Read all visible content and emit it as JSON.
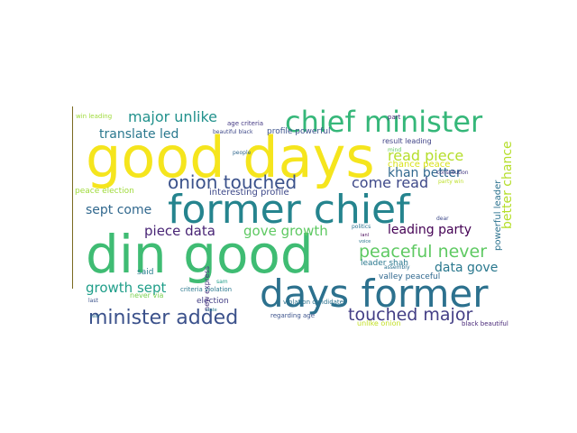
{
  "wordcloud": {
    "background": "#ffffff",
    "words": [
      {
        "text": "good days",
        "color": "#f5e51d"
      },
      {
        "text": "din good",
        "color": "#3fbc73"
      },
      {
        "text": "former chief",
        "color": "#25848e"
      },
      {
        "text": "days former",
        "color": "#2c718e"
      },
      {
        "text": "chief minister",
        "color": "#35b779"
      },
      {
        "text": "minister added",
        "color": "#3b518b"
      },
      {
        "text": "onion touched",
        "color": "#3b528b"
      },
      {
        "text": "major unlike",
        "color": "#21918c"
      },
      {
        "text": "touched major",
        "color": "#433e85"
      },
      {
        "text": "peaceful never",
        "color": "#5ec962"
      },
      {
        "text": "read piece",
        "color": "#b5de2b"
      },
      {
        "text": "come read",
        "color": "#3e4989"
      },
      {
        "text": "piece data",
        "color": "#482475"
      },
      {
        "text": "gove growth",
        "color": "#5ec962"
      },
      {
        "text": "growth sept",
        "color": "#1f9e89"
      },
      {
        "text": "sept come",
        "color": "#31688e"
      },
      {
        "text": "translate led",
        "color": "#2a788e"
      },
      {
        "text": "khan better",
        "color": "#31688e"
      },
      {
        "text": "leading party",
        "color": "#440154"
      },
      {
        "text": "data gove",
        "color": "#2a788e"
      },
      {
        "text": "better chance",
        "color": "#b5de2b"
      },
      {
        "text": "interesting profile",
        "color": "#3e4989"
      },
      {
        "text": "chance peace",
        "color": "#d8e219"
      },
      {
        "text": "powerful leader",
        "color": "#2c728e"
      },
      {
        "text": "peace election",
        "color": "#9fda3a"
      },
      {
        "text": "profile powerful",
        "color": "#3b528b"
      },
      {
        "text": "result leading",
        "color": "#414487"
      },
      {
        "text": "leader shah",
        "color": "#2a788e"
      },
      {
        "text": "valley peaceful",
        "color": "#31688e"
      },
      {
        "text": "election",
        "color": "#433e85"
      },
      {
        "text": "new express",
        "color": "#46327e"
      },
      {
        "text": "said",
        "color": "#287d8e"
      },
      {
        "text": "never via",
        "color": "#7ad151"
      },
      {
        "text": "unlike onion",
        "color": "#c2df23"
      },
      {
        "text": "regarding age",
        "color": "#3b528b"
      },
      {
        "text": "black beautiful",
        "color": "#482878"
      },
      {
        "text": "violation candidate",
        "color": "#2c728e"
      },
      {
        "text": "criteria violation",
        "color": "#2a788e"
      },
      {
        "text": "win leading",
        "color": "#9fda3a"
      },
      {
        "text": "age criteria",
        "color": "#443983"
      },
      {
        "text": "beautiful black",
        "color": "#3e4989"
      },
      {
        "text": "part",
        "color": "#482878"
      },
      {
        "text": "people",
        "color": "#31688e"
      },
      {
        "text": "constitution",
        "color": "#443a83"
      },
      {
        "text": "party win",
        "color": "#bddf26"
      },
      {
        "text": "politics",
        "color": "#2c728e"
      },
      {
        "text": "last",
        "color": "#3b528b"
      },
      {
        "text": "assembly",
        "color": "#2c728e"
      },
      {
        "text": "dear",
        "color": "#3e4989"
      },
      {
        "text": "voice",
        "color": "#2a788e"
      },
      {
        "text": "ianl",
        "color": "#440154"
      },
      {
        "text": "sam",
        "color": "#1f9e89"
      },
      {
        "text": "cast",
        "color": "#2c728e"
      },
      {
        "text": "state",
        "color": "#2a788e"
      },
      {
        "text": "mind",
        "color": "#5ec962"
      }
    ]
  }
}
